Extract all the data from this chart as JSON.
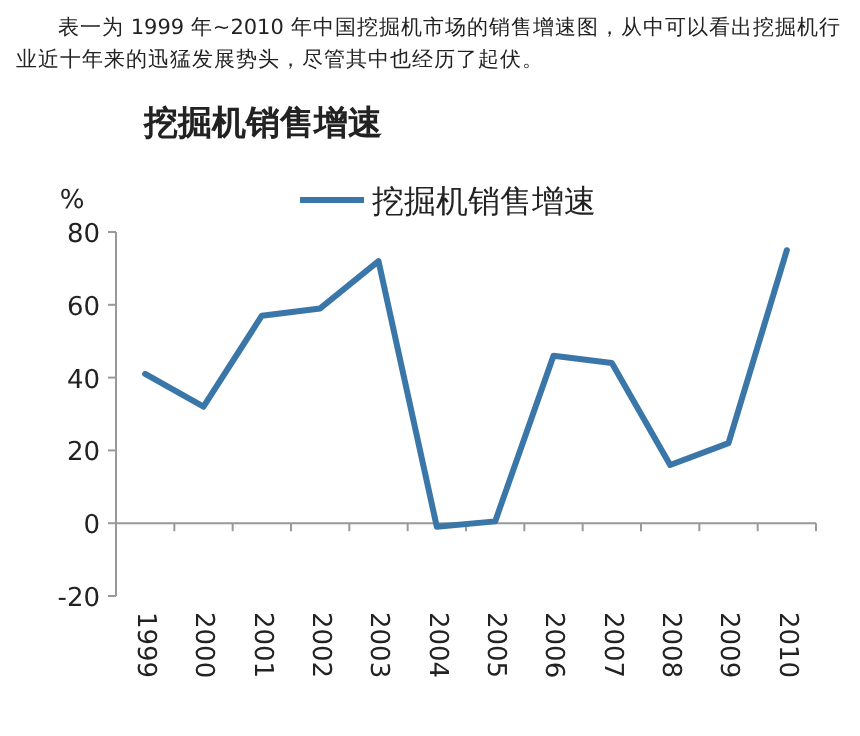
{
  "chart_data": {
    "type": "line",
    "annotations": [
      "表一为 1999 年~2010 年中国挖掘机市场的销售增速图，从中可以看出挖掘机行业近十年来的迅猛发展势头，尽管其中也经历了起伏。"
    ],
    "title": "挖掘机销售增速",
    "ylabel": "%",
    "categories": [
      "1999",
      "2000",
      "2001",
      "2002",
      "2003",
      "2004",
      "2005",
      "2006",
      "2007",
      "2008",
      "2009",
      "2010"
    ],
    "series": [
      {
        "name": "挖掘机销售增速",
        "color": "#3a77a8",
        "values": [
          41,
          32,
          57,
          59,
          72,
          -1,
          0.5,
          46,
          44,
          16,
          22,
          75
        ]
      }
    ],
    "ylim": [
      -20,
      80
    ],
    "yticks": [
      -20,
      0,
      20,
      40,
      60,
      80
    ],
    "legend": "top",
    "marker": "none",
    "line_style": "solid"
  }
}
